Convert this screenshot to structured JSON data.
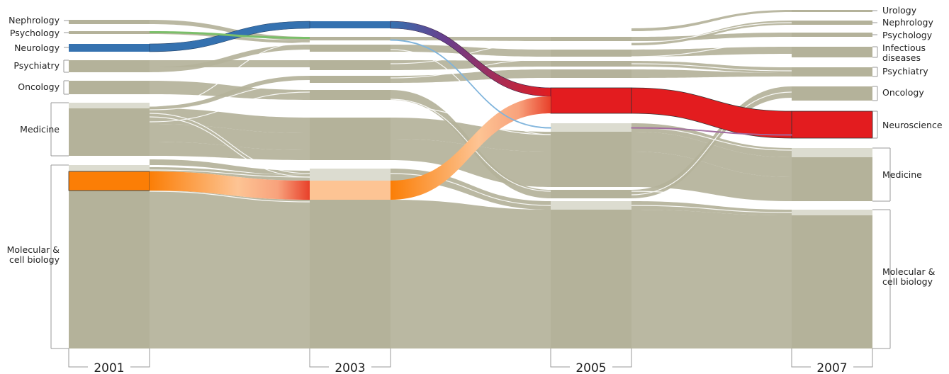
{
  "years": [
    "2001",
    "2003",
    "2005",
    "2007"
  ],
  "fields_2001": [
    "Nephrology",
    "Psychology",
    "Neurology",
    "Psychiatry",
    "Oncology",
    "Medicine",
    "Molecular &\ncell biology"
  ],
  "fields_2007": [
    "Urology",
    "Nephrology",
    "Psychology",
    "Infectious\ndiseases",
    "Psychiatry",
    "Oncology",
    "Neuroscience",
    "Medicine",
    "Molecular &\ncell biology"
  ],
  "colors": {
    "background": "#ffffff",
    "module": "#b4b29a",
    "module_light": "#dcdcd0",
    "flow_gray": "#c8c6b2",
    "neurology": "#3572b0",
    "psychology": "#7bbf6a",
    "neuroscience": "#e31c1f",
    "orange": "#fb7e06",
    "orange_light": "#fdc494",
    "purple": "#7c3c8a"
  }
}
